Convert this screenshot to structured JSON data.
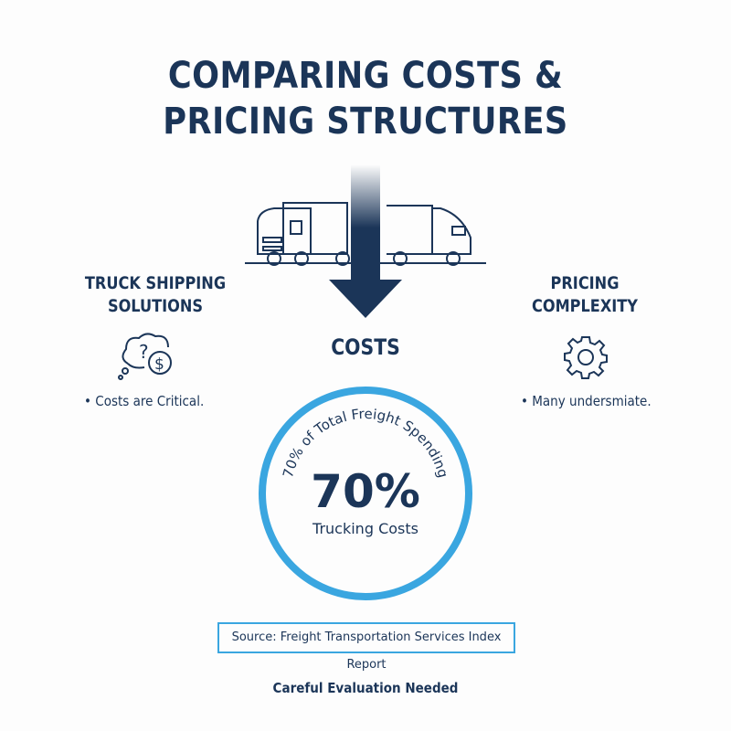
{
  "title_line1": "COMPARING COSTS &",
  "title_line2": "PRICING STRUCTURES",
  "center": {
    "label": "COSTS",
    "icon": "trucks-with-down-arrow-icon"
  },
  "left": {
    "heading_line1": "TRUCK SHIPPING",
    "heading_line2": "SOLUTIONS",
    "icon": "thought-bubble-question-dollar-icon",
    "bullet": "Costs are Critical."
  },
  "right": {
    "heading_line1": "PRICING",
    "heading_line2": "COMPLEXITY",
    "icon": "gear-icon",
    "bullet": "Many undersmiate."
  },
  "circle": {
    "arc_text": "70% of Total Freight Spending",
    "value": "70%",
    "caption": "Trucking Costs"
  },
  "source": "Source: Freight Transportation Services Index Report",
  "footer": "Careful Evaluation Needed",
  "colors": {
    "navy": "#1b3558",
    "accent": "#3aa6e0"
  }
}
